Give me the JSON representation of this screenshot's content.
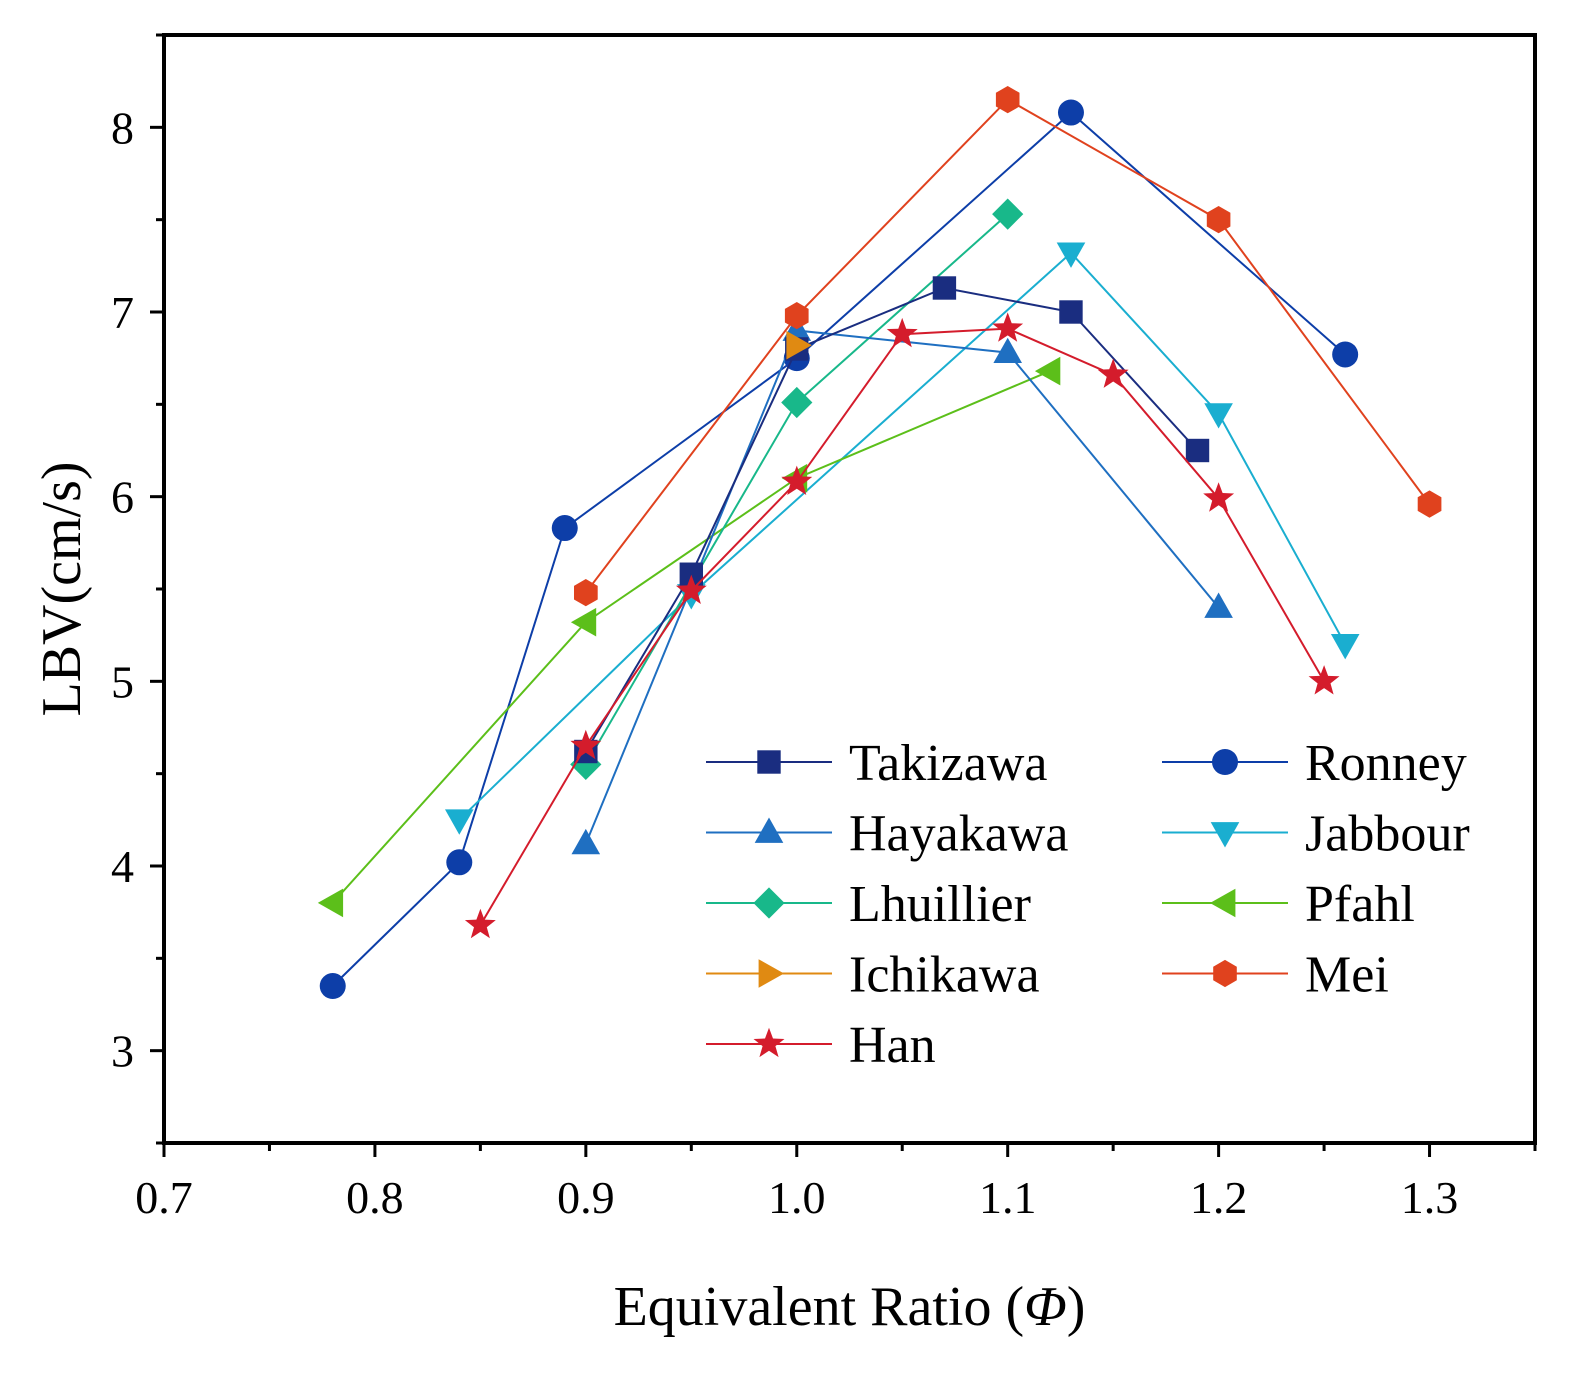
{
  "chart_data": {
    "type": "line",
    "xlabel_prefix": "Equivalent Ratio (",
    "xlabel_symbol": "Φ",
    "xlabel_suffix": ")",
    "xlabel": "Equivalent Ratio (Φ)",
    "ylabel": "LBV(cm/s)",
    "xlim": [
      0.7,
      1.35
    ],
    "ylim": [
      2.5,
      8.5
    ],
    "xticks": [
      {
        "v": 0.7,
        "label": "0.7"
      },
      {
        "v": 0.8,
        "label": "0.8"
      },
      {
        "v": 0.9,
        "label": "0.9"
      },
      {
        "v": 1.0,
        "label": "1.0"
      },
      {
        "v": 1.1,
        "label": "1.1"
      },
      {
        "v": 1.2,
        "label": "1.2"
      },
      {
        "v": 1.3,
        "label": "1.3"
      }
    ],
    "yticks": [
      {
        "v": 3,
        "label": "3"
      },
      {
        "v": 4,
        "label": "4"
      },
      {
        "v": 5,
        "label": "5"
      },
      {
        "v": 6,
        "label": "6"
      },
      {
        "v": 7,
        "label": "7"
      },
      {
        "v": 8,
        "label": "8"
      }
    ],
    "grid": false,
    "legend_position": "bottom-right",
    "series": [
      {
        "name": "Takizawa",
        "color": "#1a2d80",
        "marker": "square",
        "x": [
          0.9,
          0.95,
          1.0,
          1.07,
          1.13,
          1.19
        ],
        "y": [
          4.62,
          5.58,
          6.8,
          7.13,
          7.0,
          6.25
        ]
      },
      {
        "name": "Ronney",
        "color": "#0d3ea8",
        "marker": "circle",
        "x": [
          0.78,
          0.84,
          0.89,
          1.0,
          1.13,
          1.26
        ],
        "y": [
          3.35,
          4.02,
          5.83,
          6.75,
          8.08,
          6.77
        ]
      },
      {
        "name": "Hayakawa",
        "color": "#1f6fc1",
        "marker": "triangle-up",
        "x": [
          0.9,
          1.0,
          1.1,
          1.2
        ],
        "y": [
          4.12,
          6.9,
          6.78,
          5.4
        ]
      },
      {
        "name": "Jabbour",
        "color": "#1aaed0",
        "marker": "triangle-down",
        "x": [
          0.84,
          0.95,
          1.13,
          1.2,
          1.26
        ],
        "y": [
          4.25,
          5.47,
          7.32,
          6.45,
          5.2
        ]
      },
      {
        "name": "Lhuillier",
        "color": "#18b88a",
        "marker": "diamond",
        "x": [
          0.9,
          1.0,
          1.1
        ],
        "y": [
          4.55,
          6.51,
          7.53
        ]
      },
      {
        "name": "Pfahl",
        "color": "#5cbf1a",
        "marker": "triangle-left",
        "x": [
          0.78,
          0.9,
          1.0,
          1.12
        ],
        "y": [
          3.8,
          5.32,
          6.1,
          6.68
        ]
      },
      {
        "name": "Ichikawa",
        "color": "#e08a12",
        "marker": "triangle-right",
        "x": [
          1.0
        ],
        "y": [
          6.82
        ]
      },
      {
        "name": "Mei",
        "color": "#e0421e",
        "marker": "hexagon",
        "x": [
          0.9,
          1.0,
          1.1,
          1.2,
          1.3
        ],
        "y": [
          5.48,
          6.98,
          8.15,
          7.5,
          5.96
        ]
      },
      {
        "name": "Han",
        "color": "#d41c2c",
        "marker": "star",
        "x": [
          0.85,
          0.9,
          0.95,
          1.0,
          1.05,
          1.1,
          1.15,
          1.2,
          1.25
        ],
        "y": [
          3.68,
          4.65,
          5.49,
          6.08,
          6.88,
          6.91,
          6.66,
          5.99,
          5.0
        ]
      }
    ]
  }
}
